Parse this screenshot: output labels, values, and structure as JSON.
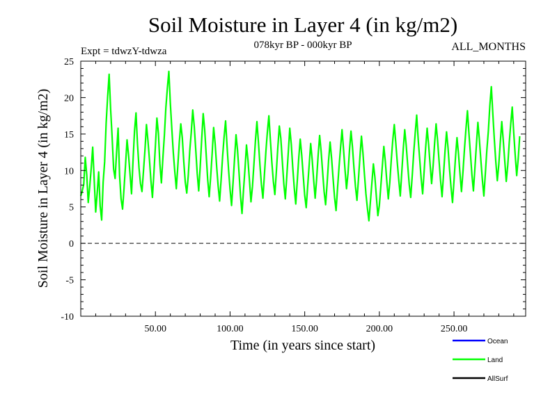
{
  "header": {
    "title": "Soil Moisture in Layer 4 (in kg/m2)",
    "expt": "Expt = tdwzY-tdwza",
    "period": "078kyr BP - 000kyr BP",
    "months": "ALL_MONTHS"
  },
  "chart_data": {
    "type": "line",
    "xlabel": "Time (in years since start)",
    "ylabel": "Soil Moisture in Layer 4 (in kg/m2)",
    "xlim": [
      0,
      298
    ],
    "ylim": [
      -10,
      25
    ],
    "x_ticks": [
      50,
      100,
      150,
      200,
      250
    ],
    "x_tick_labels": [
      "50.00",
      "100.00",
      "150.00",
      "200.00",
      "250.00"
    ],
    "y_ticks": [
      -10,
      -5,
      0,
      5,
      10,
      15,
      20,
      25
    ],
    "y_tick_labels": [
      "-10",
      "-5",
      "0",
      "5",
      "10",
      "15",
      "20",
      "25"
    ],
    "zero_line": 0,
    "grid": false,
    "legend_position": "bottom-right",
    "colors": {
      "Ocean": "#0000ff",
      "Land": "#00ff00",
      "AllSurf": "#000000"
    },
    "series": [
      {
        "name": "Ocean",
        "visible": false,
        "values": []
      },
      {
        "name": "AllSurf",
        "visible": false,
        "values": []
      },
      {
        "name": "Land",
        "x_start": 0,
        "x_step": 1,
        "values": [
          6.5,
          7.2,
          8.1,
          11.8,
          9.4,
          5.6,
          7.8,
          10.3,
          13.2,
          8.7,
          4.3,
          6.9,
          9.8,
          5.1,
          3.2,
          8.4,
          11.2,
          16.5,
          20.1,
          23.2,
          18.4,
          14.6,
          10.2,
          8.9,
          12.5,
          15.8,
          9.3,
          6.1,
          4.7,
          7.6,
          10.8,
          14.2,
          12.1,
          9.5,
          6.8,
          11.3,
          15.4,
          17.9,
          13.6,
          10.4,
          8.2,
          7.1,
          9.9,
          12.8,
          16.3,
          14.1,
          11.5,
          8.6,
          6.3,
          9.7,
          13.4,
          17.2,
          15.1,
          10.9,
          8.3,
          11.7,
          14.8,
          18.6,
          21.3,
          23.6,
          19.2,
          15.7,
          12.4,
          9.8,
          7.5,
          10.6,
          13.9,
          16.4,
          14.5,
          11.2,
          8.4,
          6.9,
          9.3,
          12.7,
          15.2,
          18.3,
          16.1,
          12.9,
          9.6,
          7.2,
          10.5,
          14.3,
          17.8,
          15.6,
          12.2,
          8.8,
          6.4,
          9.1,
          12.3,
          15.9,
          13.7,
          10.6,
          7.9,
          5.8,
          8.7,
          11.9,
          14.6,
          16.8,
          13.3,
          10.1,
          7.4,
          5.2,
          8.3,
          11.6,
          14.9,
          12.8,
          9.7,
          6.5,
          4.1,
          7.3,
          10.2,
          13.5,
          11.4,
          8.6,
          5.7,
          7.8,
          10.9,
          14.1,
          16.7,
          13.9,
          10.8,
          8.1,
          6.2,
          9.4,
          12.6,
          15.3,
          17.5,
          14.2,
          11.1,
          8.5,
          6.7,
          9.8,
          13.2,
          16.1,
          14.4,
          11.3,
          8.2,
          6.1,
          9.2,
          12.5,
          15.8,
          13.6,
          10.4,
          7.6,
          5.4,
          8.5,
          11.7,
          14.3,
          12.1,
          9.3,
          6.6,
          4.9,
          7.9,
          10.8,
          13.7,
          11.5,
          8.7,
          6.2,
          8.9,
          12.1,
          14.8,
          12.6,
          9.8,
          7.1,
          5.3,
          8.2,
          11.4,
          13.9,
          11.7,
          8.9,
          6.3,
          4.5,
          7.6,
          10.5,
          13.1,
          15.6,
          12.9,
          10.1,
          7.5,
          9.6,
          12.8,
          15.4,
          13.2,
          10.3,
          7.8,
          5.9,
          8.8,
          11.9,
          14.7,
          12.4,
          9.5,
          6.8,
          4.8,
          3.1,
          5.7,
          8.3,
          10.9,
          9.1,
          6.4,
          3.8,
          5.2,
          7.9,
          10.6,
          13.3,
          11.2,
          8.5,
          6.1,
          8.4,
          11.5,
          14.2,
          16.3,
          13.8,
          11.1,
          8.7,
          6.5,
          9.7,
          12.9,
          15.6,
          13.4,
          10.7,
          8.1,
          6.3,
          9.2,
          12.4,
          15.1,
          17.6,
          14.3,
          11.6,
          8.9,
          6.8,
          9.9,
          13.1,
          15.8,
          13.5,
          10.8,
          8.2,
          10.6,
          13.7,
          16.4,
          14.1,
          11.3,
          8.6,
          6.4,
          9.5,
          12.7,
          15.3,
          13.1,
          10.2,
          7.7,
          5.6,
          8.6,
          11.8,
          14.5,
          12.3,
          9.6,
          7.1,
          9.8,
          12.9,
          15.7,
          18.2,
          15.1,
          12.3,
          9.4,
          7.2,
          10.3,
          13.5,
          16.6,
          14.2,
          11.4,
          8.7,
          6.5,
          9.6,
          12.8,
          15.4,
          18.9,
          21.5,
          17.8,
          14.3,
          11.2,
          8.6,
          10.8,
          13.9,
          16.7,
          14.1,
          11.3,
          8.5,
          10.7,
          13.8,
          16.4,
          18.7,
          15.2,
          12.1,
          9.3,
          11.6,
          14.7
        ]
      }
    ]
  }
}
